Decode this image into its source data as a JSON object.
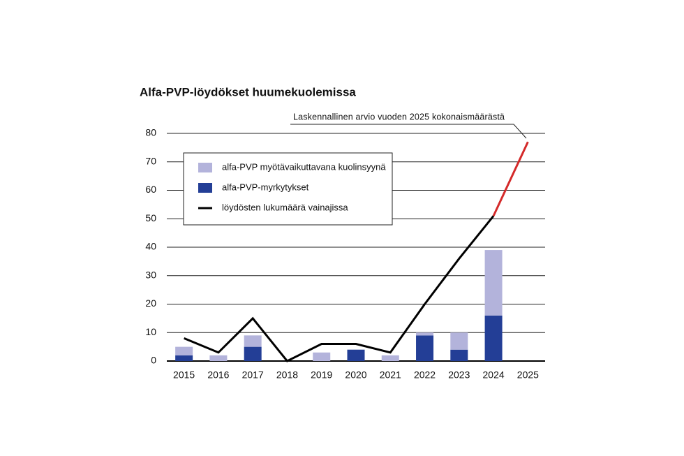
{
  "chart_data": {
    "type": "bar",
    "title": "Alfa-PVP-löydökset huumekuolemissa",
    "categories": [
      "2015",
      "2016",
      "2017",
      "2018",
      "2019",
      "2020",
      "2021",
      "2022",
      "2023",
      "2024",
      "2025"
    ],
    "series": [
      {
        "name": "alfa-PVP myötävaikuttavana kuolinsyynä",
        "kind": "bar",
        "color": "#b3b3db",
        "values": [
          3,
          2,
          4,
          0,
          3,
          0,
          2,
          1,
          6,
          23,
          null
        ]
      },
      {
        "name": "alfa-PVP-myrkytykset",
        "kind": "bar",
        "color": "#233e96",
        "values": [
          2,
          0,
          5,
          0,
          0,
          4,
          0,
          9,
          4,
          16,
          null
        ]
      },
      {
        "name": "löydösten lukumäärä vainajissa",
        "kind": "line",
        "color": "#000000",
        "values": [
          8,
          3,
          15,
          0,
          6,
          6,
          3,
          20,
          36,
          51,
          null
        ]
      }
    ],
    "estimate": {
      "text": "Laskennallinen arvio vuoden 2025 kokonaismäärästä",
      "color": "#d42a2a",
      "values": [
        null,
        null,
        null,
        null,
        null,
        null,
        null,
        null,
        null,
        51,
        77
      ]
    },
    "ylim": [
      0,
      80
    ],
    "yticks": [
      0,
      10,
      20,
      30,
      40,
      50,
      60,
      70,
      80
    ],
    "grid": true
  }
}
